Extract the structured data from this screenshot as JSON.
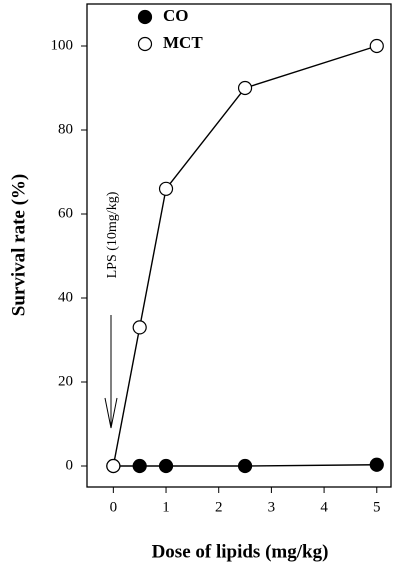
{
  "chart_data": {
    "type": "line",
    "xlabel": "Dose of lipids (mg/kg)",
    "ylabel": "Survival rate (%)",
    "annotation": "LPS (10mg/kg)",
    "x": [
      0,
      0.5,
      1,
      2.5,
      5
    ],
    "series": [
      {
        "name": "CO",
        "color": "#000000",
        "marker_fill": "#000000",
        "values": [
          0,
          0,
          0,
          0,
          0.3
        ]
      },
      {
        "name": "MCT",
        "color": "#000000",
        "marker_fill": "#ffffff",
        "values": [
          0,
          33,
          66,
          90,
          100
        ]
      }
    ],
    "xlim": [
      -0.5,
      5.27
    ],
    "ylim": [
      -5,
      110
    ],
    "xticks": [
      0,
      1,
      2,
      3,
      4,
      5
    ],
    "yticks": [
      0,
      20,
      40,
      60,
      80,
      100
    ],
    "legend": "upper left"
  }
}
